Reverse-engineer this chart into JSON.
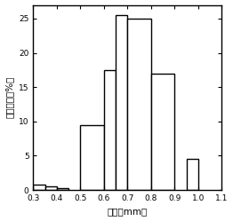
{
  "bar_lefts": [
    0.3,
    0.35,
    0.4,
    0.5,
    0.6,
    0.65,
    0.7,
    0.8,
    0.95
  ],
  "bar_heights": [
    0.8,
    0.5,
    0.3,
    9.5,
    17.5,
    25.5,
    25.0,
    17.0,
    4.5
  ],
  "bar_widths": [
    0.05,
    0.05,
    0.05,
    0.1,
    0.05,
    0.05,
    0.1,
    0.1,
    0.05
  ],
  "xlabel": "粒径（mm）",
  "ylabel": "体积分比（%）",
  "xlim": [
    0.3,
    1.1
  ],
  "ylim": [
    0,
    27
  ],
  "xticks": [
    0.3,
    0.4,
    0.5,
    0.6,
    0.7,
    0.8,
    0.9,
    1.0,
    1.1
  ],
  "yticks": [
    0,
    5,
    10,
    15,
    20,
    25
  ],
  "bar_color": "#ffffff",
  "bar_edgecolor": "#000000",
  "background_color": "#ffffff",
  "tick_fontsize": 6.5,
  "label_fontsize": 7.5
}
